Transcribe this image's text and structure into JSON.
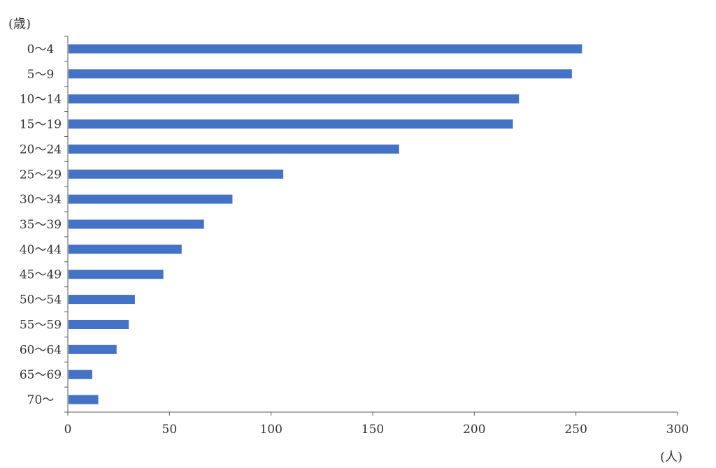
{
  "chart_data": {
    "type": "bar",
    "orientation": "horizontal",
    "ylabel": "(歳)",
    "xlabel": "(人)",
    "categories": [
      "0～4",
      "5～9",
      "10～14",
      "15～19",
      "20～24",
      "25～29",
      "30～34",
      "35～39",
      "40～44",
      "45～49",
      "50～54",
      "55～59",
      "60～64",
      "65～69",
      "70～"
    ],
    "values": [
      253,
      248,
      222,
      219,
      163,
      106,
      81,
      67,
      56,
      47,
      33,
      30,
      24,
      12,
      15
    ],
    "xlim": [
      0,
      300
    ],
    "xticks": [
      "0",
      "50",
      "100",
      "150",
      "200",
      "250",
      "300"
    ],
    "grid": false,
    "legend": "none",
    "bar_color": "#4472C4",
    "axis_color": "#595959"
  }
}
